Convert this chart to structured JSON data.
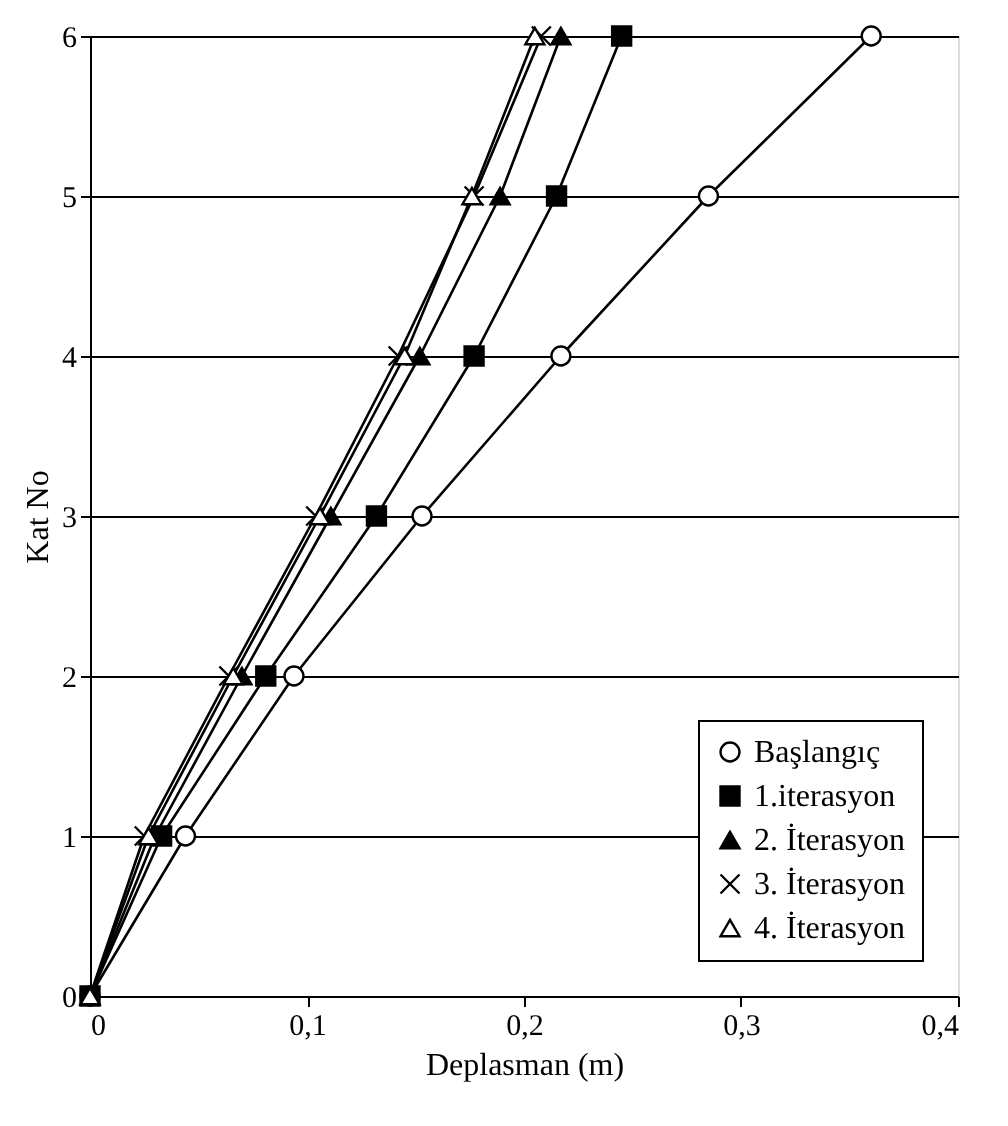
{
  "chart_data": {
    "type": "line",
    "xlabel": "Deplasman (m)",
    "ylabel": "Kat No",
    "xlim": [
      0,
      0.4
    ],
    "xticks": [
      0,
      {
        "value": 0.1,
        "label": "0,1"
      },
      {
        "value": 0.2,
        "label": "0,2"
      },
      {
        "value": 0.3,
        "label": "0,3"
      },
      {
        "value": 0.4,
        "label": "0,4"
      }
    ],
    "ylim": [
      0,
      6
    ],
    "yticks": [
      0,
      1,
      2,
      3,
      4,
      5,
      6
    ],
    "grid": "y",
    "legend": "bottom right",
    "line_style": "solid",
    "series": [
      {
        "name": "Başlangıç",
        "color": "#000000",
        "marker": "circle",
        "colors": [
          "#ffffff",
          "#ffffff",
          "#ffffff",
          "#ffffff",
          "#ffffff",
          "#ffffff",
          "#ffffff"
        ],
        "x": [
          0,
          0.044,
          0.094,
          0.153,
          0.217,
          0.285,
          0.36
        ],
        "values": [
          0,
          1,
          2,
          3,
          4,
          5,
          6
        ]
      },
      {
        "name": "1.iterasyon",
        "color": "#000000",
        "marker": "square",
        "x": [
          0,
          0.033,
          0.081,
          0.132,
          0.177,
          0.215,
          0.245
        ],
        "values": [
          0,
          1,
          2,
          3,
          4,
          5,
          6
        ]
      },
      {
        "name": "2. İterasyon",
        "color": "#000000",
        "marker": "triangle",
        "x": [
          0,
          0.03,
          0.07,
          0.111,
          0.152,
          0.189,
          0.217
        ],
        "values": [
          0,
          1,
          2,
          3,
          4,
          5,
          6
        ]
      },
      {
        "name": "3. İterasyon",
        "color": "#000000",
        "marker": "cross",
        "x": [
          0,
          0.025,
          0.064,
          0.104,
          0.142,
          0.177,
          0.208
        ],
        "values": [
          0,
          1,
          2,
          3,
          4,
          5,
          6
        ]
      },
      {
        "name": "4. İterasyon",
        "color": "#000000",
        "marker": "triangle",
        "colors": [
          "#ffffff",
          "#ffffff",
          "#ffffff",
          "#ffffff",
          "#ffffff",
          "#ffffff",
          "#ffffff"
        ],
        "x": [
          0,
          0.027,
          0.066,
          0.106,
          0.145,
          0.176,
          0.205
        ],
        "values": [
          0,
          1,
          2,
          3,
          4,
          5,
          6
        ]
      }
    ]
  }
}
